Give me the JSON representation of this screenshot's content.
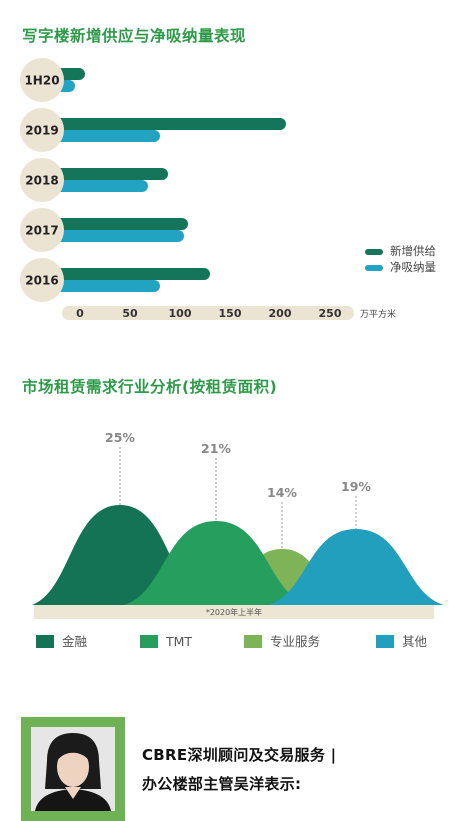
{
  "bar_chart_title": "写字楼新增供应与净吸纳量表现",
  "area_chart_title": "市场租赁需求行业分析(按租赁面积)",
  "colors": {
    "supply": "#15755a",
    "absorption": "#22a3c1",
    "finance": "#137354",
    "tmt": "#259e5e",
    "professional": "#7eb357",
    "other": "#219fbd",
    "badge": "#ece4d3",
    "title": "#2f9a4a"
  },
  "chart_data": [
    {
      "type": "bar",
      "orientation": "horizontal",
      "categories": [
        "1H20",
        "2019",
        "2018",
        "2017",
        "2016"
      ],
      "series": [
        {
          "name": "新增供给",
          "values": [
            25,
            226,
            108,
            128,
            150
          ]
        },
        {
          "name": "净吸纳量",
          "values": [
            15,
            100,
            88,
            124,
            100
          ]
        }
      ],
      "xticks": [
        "0",
        "50",
        "100",
        "150",
        "200",
        "250"
      ],
      "xlim": [
        0,
        250
      ],
      "unit": "万平方米",
      "legend": "right"
    },
    {
      "type": "area",
      "categories": [
        "金融",
        "TMT",
        "专业服务",
        "其他"
      ],
      "values": [
        25,
        21,
        14,
        19
      ],
      "value_labels": [
        "25%",
        "21%",
        "14%",
        "19%"
      ],
      "note": "*2020年上半年",
      "legend": "bottom"
    }
  ],
  "footer": {
    "line1": "CBRE深圳顾问及交易服务 |",
    "line2": "办公楼部主管吴洋表示:"
  }
}
